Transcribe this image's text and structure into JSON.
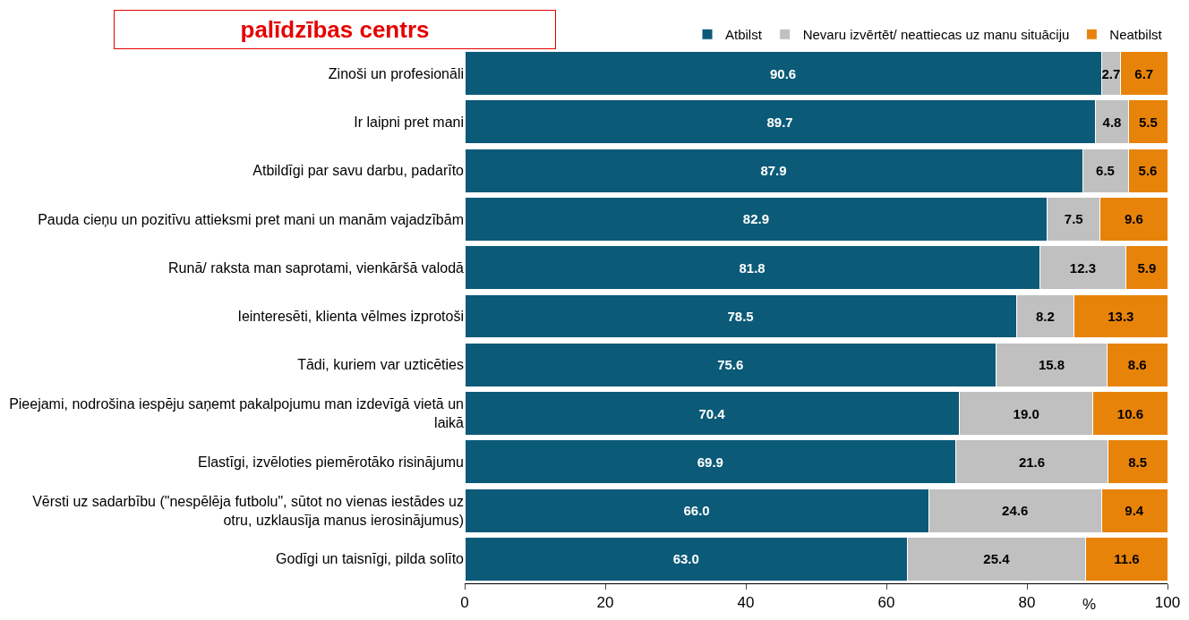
{
  "chart_data": {
    "type": "bar",
    "orientation": "horizontal",
    "stacked": true,
    "title": "palīdzības centrs",
    "xlabel": "%",
    "categories": [
      "Zinoši un profesionāli",
      "Ir laipni pret mani",
      "Atbildīgi par savu darbu, padarīto",
      "Pauda cieņu un pozitīvu attieksmi pret mani un manām vajadzībām",
      "Runā/ raksta man saprotami, vienkāršā valodā",
      "Ieinteresēti, klienta vēlmes izprotoši",
      "Tādi, kuriem var uzticēties",
      "Pieejami, nodrošina iespēju saņemt pakalpojumu man izdevīgā vietā un laikā",
      "Elastīgi, izvēloties piemērotāko risinājumu",
      "Vērsti uz sadarbību (\"nespēlēja futbolu\", sūtot no vienas iestādes uz otru, uzklausīja manus ierosinājumus)",
      "Godīgi un taisnīgi, pilda solīto"
    ],
    "series": [
      {
        "name": "Atbilst",
        "color": "#0b5a78",
        "values": [
          90.6,
          89.7,
          87.9,
          82.9,
          81.8,
          78.5,
          75.6,
          70.4,
          69.9,
          66,
          63
        ],
        "value_labels": [
          "90.6",
          "89.7",
          "87.9",
          "82.9",
          "81.8",
          "78.5",
          "75.6",
          "70.4",
          "69.9",
          "66.0",
          "63.0"
        ]
      },
      {
        "name": "Nevaru izvērtēt/ neattiecas uz manu situāciju",
        "color": "#c0c0c0",
        "values": [
          2.7,
          4.8,
          6.5,
          7.5,
          12.3,
          8.2,
          15.8,
          19,
          21.6,
          24.6,
          25.4
        ],
        "value_labels": [
          "2.7",
          "4.8",
          "6.5",
          "7.5",
          "12.3",
          "8.2",
          "15.8",
          "19.0",
          "21.6",
          "24.6",
          "25.4"
        ]
      },
      {
        "name": "Neatbilst",
        "color": "#e8830a",
        "values": [
          6.7,
          5.5,
          5.6,
          9.6,
          5.9,
          13.3,
          8.6,
          10.6,
          8.5,
          9.4,
          11.6
        ],
        "value_labels": [
          "6.7",
          "5.5",
          "5.6",
          "9.6",
          "5.9",
          "13.3",
          "8.6",
          "10.6",
          "8.5",
          "9.4",
          "11.6"
        ]
      }
    ],
    "xlim": [
      0,
      100
    ],
    "xticks": [
      0,
      20,
      40,
      60,
      80,
      100
    ],
    "legend": "top right"
  }
}
